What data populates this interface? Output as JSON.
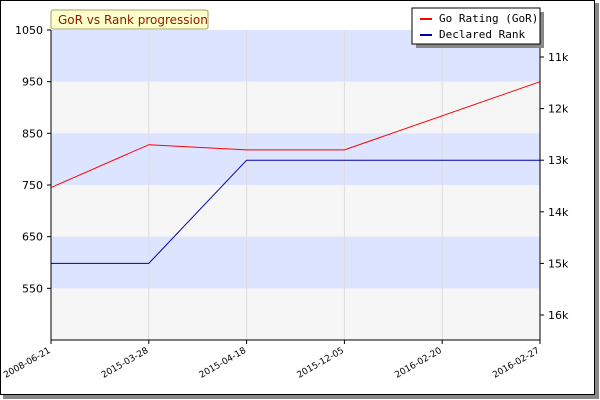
{
  "chart_data": {
    "type": "line",
    "title": "GoR vs Rank progression",
    "x": [
      "2008-06-21",
      "2015-03-28",
      "2015-04-18",
      "2015-12-05",
      "2016-02-20",
      "2016-02-27"
    ],
    "series": [
      {
        "name": "Go Rating (GoR)",
        "axis": "left",
        "color": "#ff0000",
        "values": [
          745,
          828,
          818,
          818,
          null,
          950
        ]
      },
      {
        "name": "Declared Rank",
        "axis": "right",
        "color": "#0000aa",
        "values": [
          "15k",
          "15k",
          "13k",
          "13k",
          null,
          "13k"
        ]
      }
    ],
    "y_left": {
      "ticks": [
        550,
        650,
        750,
        850,
        950,
        1050
      ],
      "range": [
        450,
        1050
      ]
    },
    "y_right": {
      "ticks": [
        "11k",
        "12k",
        "13k",
        "14k",
        "15k",
        "16k"
      ]
    },
    "legend_position": "top-right",
    "grid": true,
    "colors": {
      "band": "#dde4ff",
      "band_alt": "#f6f6f6",
      "title_bg": "#ffffcc"
    }
  }
}
